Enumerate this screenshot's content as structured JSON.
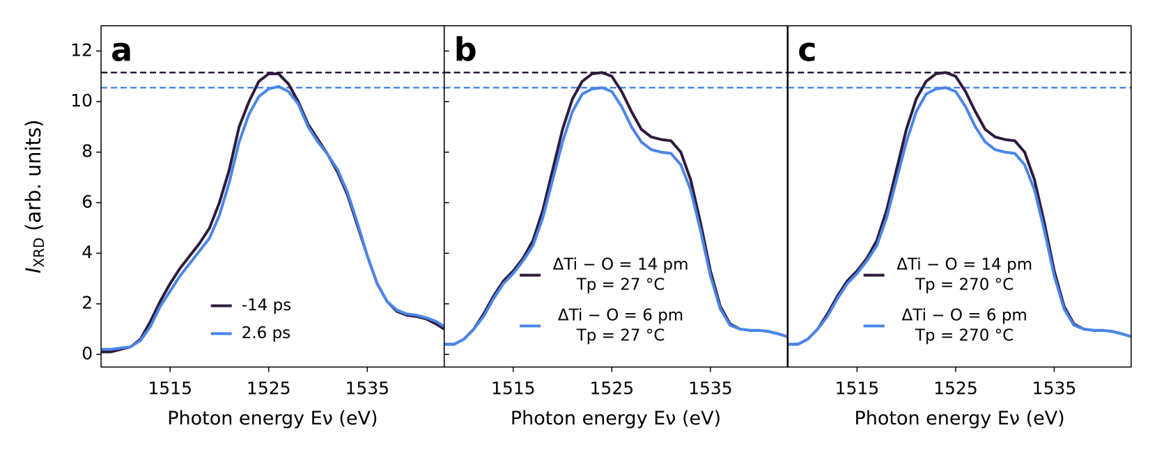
{
  "chart_data": [
    {
      "type": "line",
      "panel": "a",
      "xlabel": "Photon energy Eν (eV)",
      "ylabel": {
        "main": "I",
        "sub": "XRD",
        "rest": " (arb. units)"
      },
      "xlim": [
        1508,
        1542.8
      ],
      "xticks": [
        1515,
        1525,
        1535
      ],
      "ylim": [
        -0.5,
        13
      ],
      "yticks": [
        0,
        2,
        4,
        6,
        8,
        10,
        12
      ],
      "legend_loc": "lower center",
      "x": [
        1508,
        1509,
        1510,
        1511,
        1512,
        1513,
        1514,
        1515,
        1516,
        1517,
        1518,
        1519,
        1520,
        1521,
        1522,
        1523,
        1524,
        1525,
        1526,
        1527,
        1528,
        1529,
        1530,
        1531,
        1532,
        1533,
        1534,
        1535,
        1536,
        1537,
        1538,
        1539,
        1540,
        1541,
        1542,
        1542.8
      ],
      "series": [
        {
          "name": [
            "-14 ps"
          ],
          "color": "#2e1a3d",
          "values": [
            0.1,
            0.1,
            0.2,
            0.3,
            0.6,
            1.3,
            2.1,
            2.8,
            3.4,
            3.9,
            4.4,
            5.0,
            6.0,
            7.3,
            9.0,
            10.0,
            10.8,
            11.1,
            11.1,
            10.7,
            10.0,
            9.1,
            8.5,
            7.9,
            7.2,
            6.3,
            5.1,
            3.9,
            2.8,
            2.1,
            1.7,
            1.55,
            1.5,
            1.4,
            1.2,
            1.0
          ]
        },
        {
          "name": [
            "2.6 ps"
          ],
          "color": "#4a86e8",
          "values": [
            0.2,
            0.2,
            0.25,
            0.3,
            0.55,
            1.1,
            1.9,
            2.5,
            3.1,
            3.6,
            4.1,
            4.6,
            5.5,
            6.8,
            8.4,
            9.5,
            10.2,
            10.5,
            10.6,
            10.4,
            9.9,
            9.0,
            8.4,
            7.9,
            7.3,
            6.4,
            5.2,
            3.9,
            2.8,
            2.1,
            1.75,
            1.6,
            1.55,
            1.45,
            1.3,
            1.1
          ]
        }
      ],
      "reference_lines": [
        {
          "value": 11.15,
          "color": "#2e1a3d"
        },
        {
          "value": 10.55,
          "color": "#4a86e8"
        }
      ]
    },
    {
      "type": "line",
      "panel": "b",
      "xlabel": "Photon energy Eν (eV)",
      "xlim": [
        1508,
        1542.8
      ],
      "xticks": [
        1515,
        1525,
        1535
      ],
      "ylim": [
        -0.5,
        13
      ],
      "legend_loc": "lower left",
      "x": [
        1508,
        1509,
        1510,
        1511,
        1512,
        1513,
        1514,
        1515,
        1516,
        1517,
        1518,
        1519,
        1520,
        1521,
        1522,
        1523,
        1524,
        1525,
        1526,
        1527,
        1528,
        1529,
        1530,
        1531,
        1532,
        1533,
        1534,
        1535,
        1536,
        1537,
        1538,
        1539,
        1540,
        1541,
        1542,
        1542.8
      ],
      "series": [
        {
          "name": [
            "ΔTi − O = 14 pm",
            "Tp = 27 °C"
          ],
          "color": "#2e1a3d",
          "values": [
            0.4,
            0.4,
            0.6,
            1.0,
            1.6,
            2.3,
            2.9,
            3.3,
            3.8,
            4.5,
            5.7,
            7.3,
            8.9,
            10.1,
            10.8,
            11.1,
            11.15,
            11.0,
            10.4,
            9.6,
            8.9,
            8.6,
            8.5,
            8.45,
            8.0,
            6.9,
            5.2,
            3.3,
            1.9,
            1.2,
            1.0,
            0.95,
            0.95,
            0.9,
            0.8,
            0.7
          ]
        },
        {
          "name": [
            "ΔTi − O = 6 pm",
            "Tp = 27 °C"
          ],
          "color": "#4a86e8",
          "values": [
            0.4,
            0.4,
            0.6,
            1.0,
            1.5,
            2.2,
            2.8,
            3.2,
            3.7,
            4.3,
            5.4,
            6.9,
            8.4,
            9.6,
            10.3,
            10.5,
            10.55,
            10.4,
            9.8,
            9.0,
            8.4,
            8.1,
            8.0,
            7.95,
            7.5,
            6.5,
            4.9,
            3.1,
            1.8,
            1.15,
            1.0,
            0.95,
            0.95,
            0.9,
            0.8,
            0.7
          ]
        }
      ],
      "reference_lines": [
        {
          "value": 11.15,
          "color": "#2e1a3d"
        },
        {
          "value": 10.55,
          "color": "#4a86e8"
        }
      ]
    },
    {
      "type": "line",
      "panel": "c",
      "xlabel": "Photon energy Eν (eV)",
      "xlim": [
        1508,
        1542.8
      ],
      "xticks": [
        1515,
        1525,
        1535
      ],
      "ylim": [
        -0.5,
        13
      ],
      "legend_loc": "lower left",
      "x": [
        1508,
        1509,
        1510,
        1511,
        1512,
        1513,
        1514,
        1515,
        1516,
        1517,
        1518,
        1519,
        1520,
        1521,
        1522,
        1523,
        1524,
        1525,
        1526,
        1527,
        1528,
        1529,
        1530,
        1531,
        1532,
        1533,
        1534,
        1535,
        1536,
        1537,
        1538,
        1539,
        1540,
        1541,
        1542,
        1542.8
      ],
      "series": [
        {
          "name": [
            "ΔTi − O = 14 pm",
            "Tp = 270 °C"
          ],
          "color": "#2e1a3d",
          "values": [
            0.4,
            0.4,
            0.6,
            1.0,
            1.6,
            2.3,
            2.9,
            3.3,
            3.8,
            4.5,
            5.7,
            7.3,
            8.9,
            10.1,
            10.8,
            11.1,
            11.15,
            11.0,
            10.4,
            9.6,
            8.9,
            8.6,
            8.5,
            8.45,
            8.0,
            6.9,
            5.2,
            3.3,
            1.9,
            1.2,
            1.0,
            0.95,
            0.95,
            0.9,
            0.8,
            0.7
          ]
        },
        {
          "name": [
            "ΔTi − O = 6 pm",
            "Tp = 270 °C"
          ],
          "color": "#4a86e8",
          "values": [
            0.4,
            0.4,
            0.6,
            1.0,
            1.5,
            2.2,
            2.8,
            3.2,
            3.7,
            4.3,
            5.4,
            6.9,
            8.4,
            9.6,
            10.3,
            10.5,
            10.55,
            10.4,
            9.8,
            9.0,
            8.4,
            8.1,
            8.0,
            7.95,
            7.5,
            6.5,
            4.9,
            3.1,
            1.8,
            1.15,
            1.0,
            0.95,
            0.95,
            0.9,
            0.8,
            0.7
          ]
        }
      ],
      "reference_lines": [
        {
          "value": 11.15,
          "color": "#2e1a3d"
        },
        {
          "value": 10.55,
          "color": "#4a86e8"
        }
      ]
    }
  ]
}
